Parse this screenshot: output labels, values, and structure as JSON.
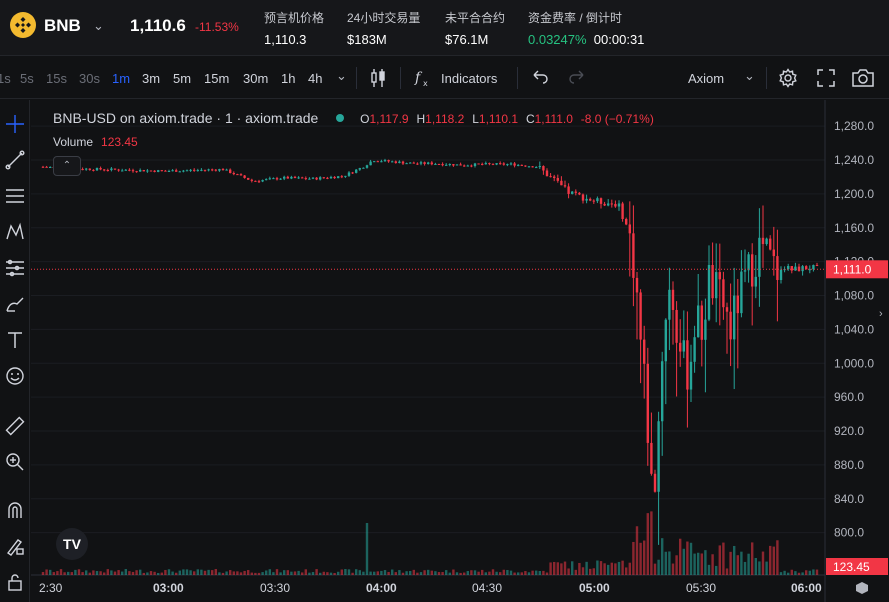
{
  "ticker": {
    "symbol": "BNB",
    "price": "1,110.6",
    "change_pct": "-11.53%",
    "stats": [
      {
        "label": "预言机价格",
        "value": "1,110.3"
      },
      {
        "label": "24小时交易量",
        "value": "$183M"
      },
      {
        "label": "未平合合约",
        "value": "$76.1M"
      },
      {
        "label": "资金费率 / 倒计时",
        "value": "0.03247%",
        "value2": "00:00:31"
      }
    ]
  },
  "toolbar": {
    "timeframes": [
      "1s",
      "5s",
      "15s",
      "30s",
      "1m",
      "3m",
      "5m",
      "15m",
      "30m",
      "1h",
      "4h"
    ],
    "active_timeframe": "1m",
    "indicators_label": "Indicators",
    "exchange_select": "Axiom"
  },
  "legend": {
    "title": "BNB-USD on axiom.trade · 1 · axiom.trade",
    "o_key": "O",
    "o_val": "1,117.9",
    "h_key": "H",
    "h_val": "1,118.2",
    "l_key": "L",
    "l_val": "1,110.1",
    "c_key": "C",
    "c_val": "1,111.0",
    "change": "-8.0 (−0.71%)",
    "volume_label": "Volume",
    "volume_value": "123.45"
  },
  "colors": {
    "up": "#26a69a",
    "down": "#f23645",
    "accent": "#2962ff",
    "brand": "#f3ba2f"
  },
  "icons": [
    "crosshair-icon",
    "trend-line-icon",
    "fib-icon",
    "pattern-icon",
    "measure-icon",
    "brush-icon",
    "text-icon",
    "emoji-icon",
    "ruler-icon",
    "zoom-in-icon",
    "magnet-icon",
    "lock-draw-icon",
    "lock-icon",
    "candle-type-icon",
    "undo-icon",
    "redo-icon",
    "settings-icon",
    "fullscreen-icon",
    "camera-icon"
  ],
  "chart_data": {
    "type": "candlestick",
    "y_ticks": [
      "1,280.0",
      "1,240.0",
      "1,200.0",
      "1,160.0",
      "1,120.0",
      "1,080.0",
      "1,040.0",
      "1,000.0",
      "960.0",
      "920.0",
      "880.0",
      "840.0",
      "800.0"
    ],
    "x_ticks": [
      "2:30",
      "03:00",
      "03:30",
      "04:00",
      "04:30",
      "05:00",
      "05:30",
      "06:00"
    ],
    "ylim": [
      750,
      1305
    ],
    "last_price_label": "1,111.0",
    "last_volume_label": "123.45",
    "series_approx": [
      [
        0,
        1232
      ],
      [
        30,
        1230
      ],
      [
        60,
        1229
      ],
      [
        90,
        1228
      ],
      [
        120,
        1227
      ],
      [
        150,
        1228
      ],
      [
        180,
        1229
      ],
      [
        210,
        1215
      ],
      [
        240,
        1219
      ],
      [
        270,
        1218
      ],
      [
        300,
        1221
      ],
      [
        320,
        1232
      ],
      [
        330,
        1240
      ],
      [
        350,
        1238
      ],
      [
        370,
        1236
      ],
      [
        390,
        1236
      ],
      [
        420,
        1234
      ],
      [
        440,
        1235
      ],
      [
        470,
        1235
      ],
      [
        495,
        1232
      ],
      [
        505,
        1222
      ],
      [
        515,
        1212
      ],
      [
        525,
        1202
      ],
      [
        535,
        1198
      ],
      [
        548,
        1193
      ],
      [
        560,
        1190
      ],
      [
        575,
        1188
      ],
      [
        585,
        1158
      ],
      [
        592,
        1110
      ],
      [
        598,
        1020
      ],
      [
        603,
        960
      ],
      [
        607,
        880
      ],
      [
        610,
        830
      ],
      [
        615,
        920
      ],
      [
        620,
        1030
      ],
      [
        625,
        1090
      ],
      [
        630,
        1070
      ],
      [
        636,
        1020
      ],
      [
        641,
        1000
      ],
      [
        646,
        990
      ],
      [
        652,
        1050
      ],
      [
        660,
        1040
      ],
      [
        665,
        1100
      ],
      [
        672,
        1085
      ],
      [
        680,
        1070
      ],
      [
        688,
        1040
      ],
      [
        695,
        1075
      ],
      [
        702,
        1095
      ],
      [
        710,
        1120
      ],
      [
        718,
        1140
      ],
      [
        725,
        1125
      ],
      [
        732,
        1110
      ],
      [
        740,
        1115
      ],
      [
        748,
        1110
      ],
      [
        758,
        1112
      ],
      [
        768,
        1113
      ],
      [
        775,
        1111
      ]
    ]
  }
}
